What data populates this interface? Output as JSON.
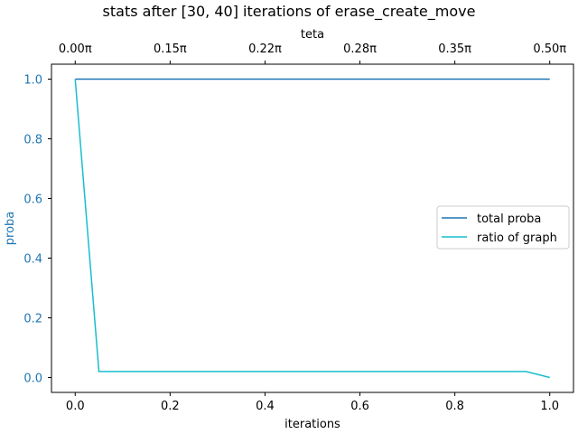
{
  "chart_data": {
    "type": "line",
    "title": "stats after [30, 40] iterations of erase_create_move",
    "xlabel": "iterations",
    "ylabel": "proba",
    "top_xlabel": "teta",
    "xlim": [
      -0.05,
      1.05
    ],
    "ylim": [
      -0.05,
      1.05
    ],
    "x_ticks": [
      0.0,
      0.2,
      0.4,
      0.6,
      0.8,
      1.0
    ],
    "x_tick_labels": [
      "0.0",
      "0.2",
      "0.4",
      "0.6",
      "0.8",
      "1.0"
    ],
    "y_ticks": [
      0.0,
      0.2,
      0.4,
      0.6,
      0.8,
      1.0
    ],
    "y_tick_labels": [
      "0.0",
      "0.2",
      "0.4",
      "0.6",
      "0.8",
      "1.0"
    ],
    "top_x_ticks": [
      0.0,
      0.2,
      0.4,
      0.6,
      0.8,
      1.0
    ],
    "top_x_tick_labels": [
      "0.00π",
      "0.15π",
      "0.22π",
      "0.28π",
      "0.35π",
      "0.50π"
    ],
    "grid": false,
    "legend_position": "center-right",
    "ylabel_color": "#1f77b4",
    "series": [
      {
        "name": "total proba",
        "color": "#1f77b4",
        "x": [
          0.0,
          0.05,
          0.1,
          0.15,
          0.2,
          0.25,
          0.3,
          0.35,
          0.4,
          0.45,
          0.5,
          0.55,
          0.6,
          0.65,
          0.7,
          0.75,
          0.8,
          0.85,
          0.9,
          0.95,
          1.0
        ],
        "y": [
          1.0,
          1.0,
          1.0,
          1.0,
          1.0,
          1.0,
          1.0,
          1.0,
          1.0,
          1.0,
          1.0,
          1.0,
          1.0,
          1.0,
          1.0,
          1.0,
          1.0,
          1.0,
          1.0,
          1.0,
          1.0
        ]
      },
      {
        "name": "ratio of graph",
        "color": "#17becf",
        "x": [
          0.0,
          0.05,
          0.1,
          0.15,
          0.2,
          0.25,
          0.3,
          0.35,
          0.4,
          0.45,
          0.5,
          0.55,
          0.6,
          0.65,
          0.7,
          0.75,
          0.8,
          0.85,
          0.9,
          0.95,
          1.0
        ],
        "y": [
          1.0,
          0.02,
          0.02,
          0.02,
          0.02,
          0.02,
          0.02,
          0.02,
          0.02,
          0.02,
          0.02,
          0.02,
          0.02,
          0.02,
          0.02,
          0.02,
          0.02,
          0.02,
          0.02,
          0.02,
          0.0
        ]
      }
    ]
  }
}
